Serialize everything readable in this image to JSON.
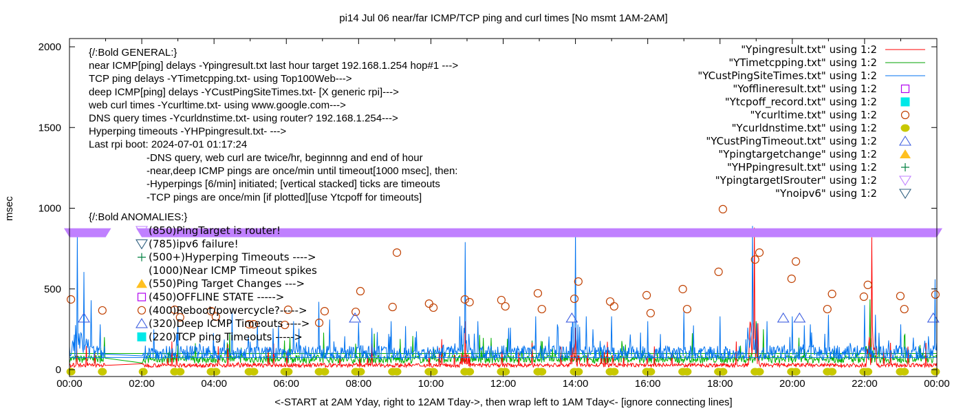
{
  "chart_data": {
    "type": "line",
    "title": "pi14 Jul 06  near/far ICMP/TCP ping and curl times [No msmt 1AM-2AM]",
    "xlabel": "<-START at 2AM Yday, right to 12AM Tday->, then wrap left to 1AM Tday<- [ignore connecting lines]",
    "ylabel": "msec",
    "xlim": [
      0,
      24
    ],
    "ylim": [
      0,
      2050
    ],
    "xticks": [
      "00:00",
      "02:00",
      "04:00",
      "06:00",
      "08:00",
      "10:00",
      "12:00",
      "14:00",
      "16:00",
      "18:00",
      "20:00",
      "22:00",
      "00:00"
    ],
    "yticks": [
      {
        "v": 0,
        "label": "0"
      },
      {
        "v": 500,
        "label": "500"
      },
      {
        "v": 1000,
        "label": "1000"
      },
      {
        "v": 1500,
        "label": "1500"
      },
      {
        "v": 2000,
        "label": "2000"
      }
    ],
    "legend_position": "top-right",
    "legend": [
      {
        "label": "\"Ypingresult.txt\" using 1:2",
        "kind": "line",
        "color": "#ff0000"
      },
      {
        "label": "\"YTimetcpping.txt\" using 1:2",
        "kind": "line",
        "color": "#00a000"
      },
      {
        "label": "\"YCustPingSiteTimes.txt\" using 1:2",
        "kind": "line",
        "color": "#0072f0"
      },
      {
        "label": "\"Yofflineresult.txt\" using 1:2",
        "kind": "open-square",
        "color": "#b000f0"
      },
      {
        "label": "\"Ytcpoff_record.txt\" using 1:2",
        "kind": "filled-square",
        "color": "#00e8e8"
      },
      {
        "label": "\"Ycurltime.txt\" using 1:2",
        "kind": "open-circle",
        "color": "#c04000"
      },
      {
        "label": "\"Ycurldnstime.txt\" using 1:2",
        "kind": "filled-circle",
        "color": "#c8c800"
      },
      {
        "label": "\"YCustPingTimeout.txt\" using 1:2",
        "kind": "open-triangle-up",
        "color": "#4060e0"
      },
      {
        "label": "\"Ypingtargetchange\" using 1:2",
        "kind": "filled-triangle-up",
        "color": "#ffc020"
      },
      {
        "label": "\"YHPpingresult.txt\" using 1:2",
        "kind": "plus",
        "color": "#008040"
      },
      {
        "label": "\"YpingtargetISrouter\" using 1:2",
        "kind": "open-triangle-down",
        "color": "#c080ff"
      },
      {
        "label": "\"Ynoipv6\" using 1:2",
        "kind": "open-triangle-down",
        "color": "#306080"
      }
    ],
    "series": {
      "near_icmp": {
        "baseline": [
          15,
          40
        ],
        "spikes": [
          [
            18.95,
            880
          ],
          [
            22.2,
            820
          ],
          [
            10.95,
            300
          ],
          [
            14.0,
            260
          ]
        ]
      },
      "tcp": {
        "baseline": [
          40,
          90
        ],
        "level_line": 100,
        "spikes": [
          [
            22.15,
            435
          ],
          [
            19.0,
            300
          ],
          [
            19.2,
            250
          ],
          [
            3.0,
            160
          ],
          [
            12.8,
            180
          ]
        ]
      },
      "custping": {
        "baseline": [
          60,
          150
        ],
        "level_line": 75,
        "spikes": [
          [
            0.22,
            840
          ],
          [
            0.4,
            605
          ],
          [
            0.6,
            430
          ],
          [
            0.85,
            280
          ],
          [
            3.0,
            300
          ],
          [
            4.5,
            350
          ],
          [
            5.2,
            290
          ],
          [
            6.2,
            300
          ],
          [
            6.9,
            420
          ],
          [
            7.2,
            310
          ],
          [
            8.0,
            290
          ],
          [
            8.9,
            300
          ],
          [
            9.3,
            270
          ],
          [
            10.8,
            330
          ],
          [
            10.95,
            790
          ],
          [
            11.3,
            300
          ],
          [
            12.2,
            260
          ],
          [
            12.9,
            330
          ],
          [
            13.5,
            280
          ],
          [
            14.0,
            860
          ],
          [
            14.3,
            330
          ],
          [
            15.0,
            330
          ],
          [
            16.0,
            300
          ],
          [
            17.0,
            360
          ],
          [
            18.0,
            330
          ],
          [
            18.9,
            890
          ],
          [
            19.3,
            300
          ],
          [
            20.0,
            330
          ],
          [
            20.5,
            280
          ],
          [
            21.0,
            340
          ],
          [
            22.0,
            400
          ],
          [
            22.3,
            340
          ],
          [
            23.0,
            280
          ],
          [
            23.95,
            560
          ]
        ],
        "gap": [
          1.0,
          2.0
        ]
      }
    },
    "curl_times": [
      [
        0.04,
        435
      ],
      [
        0.91,
        367
      ],
      [
        2.91,
        371
      ],
      [
        3.06,
        324
      ],
      [
        3.92,
        362
      ],
      [
        4.05,
        328
      ],
      [
        4.97,
        281
      ],
      [
        5.1,
        281
      ],
      [
        5.96,
        277
      ],
      [
        6.05,
        371
      ],
      [
        6.91,
        290
      ],
      [
        7.06,
        362
      ],
      [
        7.92,
        358
      ],
      [
        8.05,
        486
      ],
      [
        8.94,
        388
      ],
      [
        9.06,
        725
      ],
      [
        9.95,
        409
      ],
      [
        10.07,
        384
      ],
      [
        10.94,
        435
      ],
      [
        11.07,
        418
      ],
      [
        11.95,
        431
      ],
      [
        12.06,
        392
      ],
      [
        12.96,
        473
      ],
      [
        13.07,
        375
      ],
      [
        13.97,
        439
      ],
      [
        14.08,
        546
      ],
      [
        14.96,
        422
      ],
      [
        15.07,
        392
      ],
      [
        15.97,
        461
      ],
      [
        16.08,
        350
      ],
      [
        16.97,
        499
      ],
      [
        17.09,
        375
      ],
      [
        17.96,
        606
      ],
      [
        18.08,
        994
      ],
      [
        18.97,
        682
      ],
      [
        19.09,
        725
      ],
      [
        19.98,
        563
      ],
      [
        20.1,
        670
      ],
      [
        20.97,
        375
      ],
      [
        21.1,
        469
      ],
      [
        21.98,
        452
      ],
      [
        22.09,
        525
      ],
      [
        22.99,
        456
      ],
      [
        23.1,
        375
      ],
      [
        23.96,
        465
      ]
    ],
    "dns_times": [
      0.04,
      0.91,
      2.04,
      2.91,
      3.06,
      3.92,
      4.05,
      4.97,
      5.1,
      5.96,
      6.05,
      6.91,
      7.06,
      7.92,
      8.05,
      8.94,
      9.06,
      9.95,
      10.07,
      10.94,
      11.07,
      11.95,
      12.06,
      12.96,
      13.07,
      13.97,
      14.08,
      14.96,
      15.07,
      15.97,
      16.08,
      16.97,
      17.09,
      17.96,
      18.08,
      18.97,
      19.09,
      19.98,
      20.1,
      20.97,
      21.1,
      21.98,
      22.09,
      22.99,
      23.1,
      23.96
    ],
    "deep_timeouts": {
      "value": 320,
      "hours": [
        0.4,
        7.9,
        13.9,
        19.75,
        20.2,
        23.9
      ]
    },
    "ping_target_is_router": {
      "value": 850,
      "ranges": [
        [
          0,
          1.0
        ],
        [
          2.0,
          24
        ]
      ]
    },
    "annotations": {
      "general": [
        "{/:Bold GENERAL:}",
        "near ICMP[ping] delays -Ypingresult.txt last hour target 192.168.1.254 hop#1 --->",
        "TCP ping delays -YTimetcpping.txt- using Top100Web--->",
        "deep ICMP[ping] delays -YCustPingSiteTimes.txt- [X generic rpi]--->",
        "web curl times -Ycurltime.txt- using www.google.com--->",
        "DNS query times -Ycurldnstime.txt- using router? 192.168.1.254--->",
        "Hyperping timeouts -YHPpingresult.txt- --->",
        "Last rpi boot: 2024-07-01 01:17:24"
      ],
      "notes": [
        "-DNS query, web curl are twice/hr, beginnng and end of hour",
        "-near,deep ICMP pings are once/min until timeout[1000 msec], then:",
        "  -Hyperpings [6/min] initiated; [vertical stacked] ticks are timeouts",
        "-TCP pings are once/min [if plotted][use Ytcpoff for timeouts]"
      ],
      "anomalies_title": "{/:Bold ANOMALIES:}",
      "anomalies": [
        {
          "kind": "open-triangle-down",
          "color": "#c080ff",
          "text": "(850)PingTarget is router!"
        },
        {
          "kind": "open-triangle-down",
          "color": "#306080",
          "text": "(785)ipv6 failure!"
        },
        {
          "kind": "plus",
          "color": "#008040",
          "text": "(500+)Hyperping Timeouts ---->"
        },
        {
          "kind": "none",
          "color": "#000000",
          "text": "(1000)Near ICMP Timeout spikes"
        },
        {
          "kind": "filled-triangle-up",
          "color": "#ffc020",
          "text": "(550)Ping Target Changes --->"
        },
        {
          "kind": "open-square",
          "color": "#b000f0",
          "text": "(450)OFFLINE STATE ----->"
        },
        {
          "kind": "open-circle",
          "color": "#c04000",
          "text": "(400)Reboot/powercycle?----->"
        },
        {
          "kind": "open-triangle-up",
          "color": "#4060e0",
          "text": "(320)Deep ICMP Timeouts ---->"
        },
        {
          "kind": "filled-square",
          "color": "#00e8e8",
          "text": "(220)TCP ping Timeouts ----->"
        }
      ]
    }
  }
}
